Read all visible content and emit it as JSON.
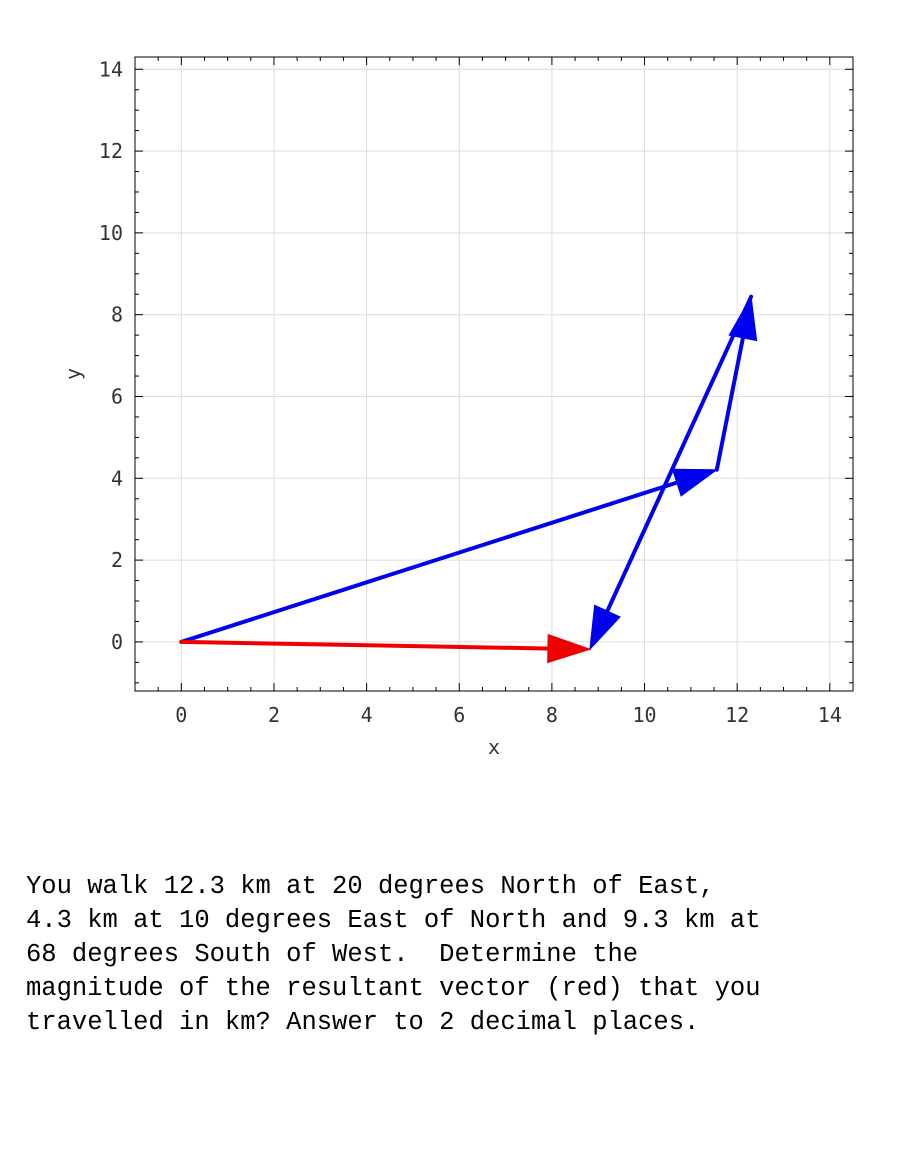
{
  "chart_data": {
    "type": "vector",
    "xlabel": "x",
    "ylabel": "y",
    "xlim": [
      -1,
      14.5
    ],
    "ylim": [
      -1.2,
      14.3
    ],
    "x_ticks": [
      0,
      2,
      4,
      6,
      8,
      10,
      12,
      14
    ],
    "y_ticks": [
      0,
      2,
      4,
      6,
      8,
      10,
      12,
      14
    ],
    "grid": true,
    "vectors": [
      {
        "role": "component",
        "color": "#0000ee",
        "from": [
          0,
          0
        ],
        "to": [
          11.56,
          4.21
        ]
      },
      {
        "role": "component",
        "color": "#0000ee",
        "from": [
          11.56,
          4.21
        ],
        "to": [
          12.3,
          8.44
        ]
      },
      {
        "role": "component",
        "color": "#0000ee",
        "from": [
          12.3,
          8.44
        ],
        "to": [
          8.82,
          -0.18
        ]
      },
      {
        "role": "resultant",
        "color": "#ee0000",
        "from": [
          0,
          0
        ],
        "to": [
          8.82,
          -0.18
        ]
      }
    ]
  },
  "problem": {
    "lines": [
      "You walk 12.3 km at 20 degrees North of East,",
      "4.3 km at 10 degrees East of North and 9.3 km at",
      "68 degrees South of West.  Determine the",
      "magnitude of the resultant vector (red) that you",
      "travelled in km? Answer to 2 decimal places."
    ]
  }
}
